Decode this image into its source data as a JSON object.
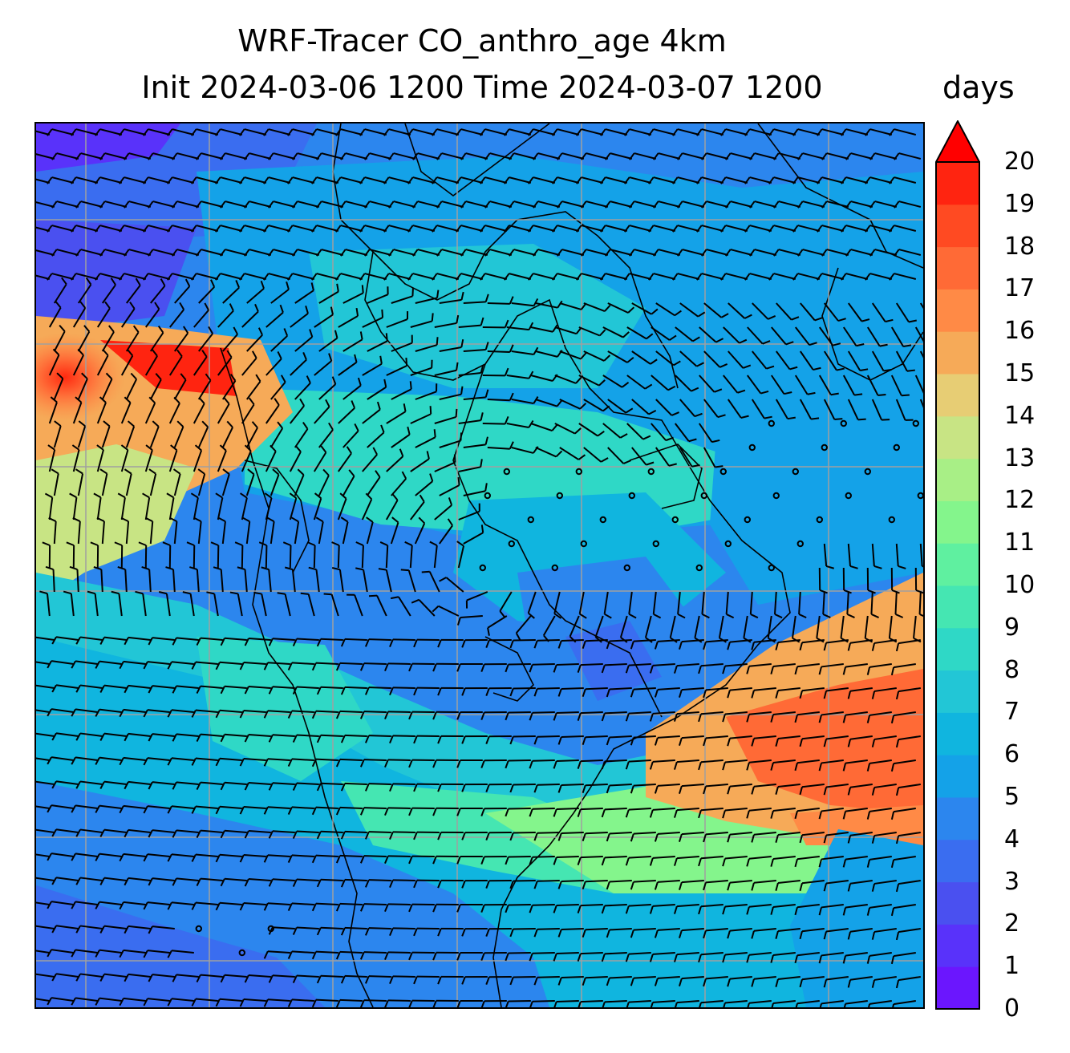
{
  "title": {
    "line1": "WRF-Tracer CO_anthro_age 4km",
    "line2": "Init 2024-03-06 1200 Time 2024-03-07 1200"
  },
  "colorbar": {
    "units": "days",
    "min": 0,
    "max": 20,
    "extend": "max",
    "tick_labels": [
      "0",
      "1",
      "2",
      "3",
      "4",
      "5",
      "6",
      "7",
      "8",
      "9",
      "10",
      "11",
      "12",
      "13",
      "14",
      "15",
      "16",
      "17",
      "18",
      "19",
      "20"
    ],
    "colors": [
      "#6b16fe",
      "#5932fa",
      "#4a50f0",
      "#3a6df0",
      "#2c86ee",
      "#14a2e8",
      "#10b5df",
      "#22c6d6",
      "#2fd8c6",
      "#45e6b2",
      "#5ff0a0",
      "#84f58c",
      "#a8ef86",
      "#c8e484",
      "#e7cd74",
      "#f6aa58",
      "#ff8a46",
      "#ff6a36",
      "#ff4a22",
      "#ff2410",
      "#ff0000"
    ]
  },
  "map": {
    "field": "CO_anthro_age",
    "gridlines": true,
    "wind_barbs": true
  }
}
